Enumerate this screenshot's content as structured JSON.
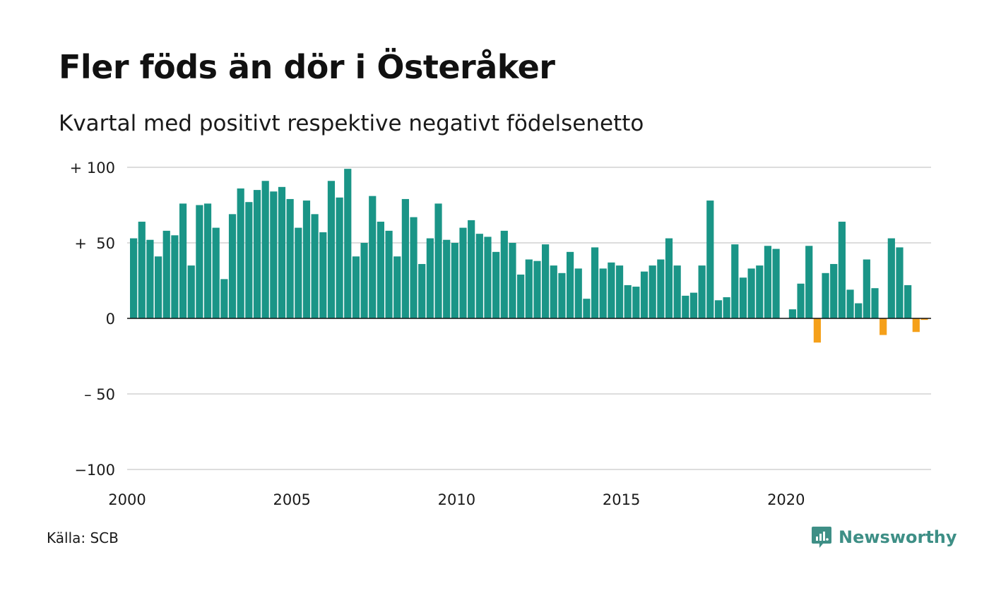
{
  "title": "Fler föds än dör i Österåker",
  "subtitle": "Kvartal med positivt respektive negativt födelsenetto",
  "source": "Källa: SCB",
  "brand": {
    "name": "Newsworthy",
    "icon": "newsworthy-logo-icon"
  },
  "colors": {
    "positive": "#1a9587",
    "negative": "#f5a01a",
    "grid": "#dddddd",
    "zero_line": "#111111"
  },
  "chart_data": {
    "type": "bar",
    "title": "Fler föds än dör i Österåker",
    "subtitle": "Kvartal med positivt respektive negativt födelsenetto",
    "x_start_year": 2000,
    "periods_per_year": 4,
    "ylim": [
      -100,
      100
    ],
    "y_ticks": [
      {
        "value": 100,
        "label": "+ 100"
      },
      {
        "value": 50,
        "label": "+  50"
      },
      {
        "value": 0,
        "label": "0"
      },
      {
        "value": -50,
        "label": "– 50"
      },
      {
        "value": -100,
        "label": "−100"
      }
    ],
    "x_ticks": [
      {
        "value": 2000,
        "label": "2000"
      },
      {
        "value": 2005,
        "label": "2005"
      },
      {
        "value": 2010,
        "label": "2010"
      },
      {
        "value": 2015,
        "label": "2015"
      },
      {
        "value": 2020,
        "label": "2020"
      }
    ],
    "grid": true,
    "values": [
      53,
      64,
      52,
      41,
      58,
      55,
      76,
      35,
      75,
      76,
      60,
      26,
      69,
      86,
      77,
      85,
      91,
      84,
      87,
      79,
      60,
      78,
      69,
      57,
      91,
      80,
      99,
      41,
      50,
      81,
      64,
      58,
      41,
      79,
      67,
      36,
      53,
      76,
      52,
      50,
      60,
      65,
      56,
      54,
      44,
      58,
      50,
      29,
      39,
      38,
      49,
      35,
      30,
      44,
      33,
      13,
      47,
      33,
      37,
      35,
      22,
      21,
      31,
      35,
      39,
      53,
      35,
      15,
      17,
      35,
      78,
      12,
      14,
      49,
      27,
      33,
      35,
      48,
      46,
      0,
      6,
      23,
      48,
      -16,
      30,
      36,
      64,
      19,
      10,
      39,
      20,
      -11,
      53,
      47,
      22,
      -9,
      -1
    ]
  }
}
